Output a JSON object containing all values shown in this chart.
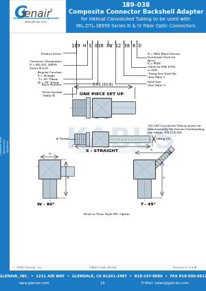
{
  "title_part": "189-038",
  "title_line1": "Composite Connector Backshell Adapter",
  "title_line2": "for Helical Convoluted Tubing to be used with",
  "title_line3": "MIL-DTL-38999 Series III & IV Fiber Optic Connectors",
  "header_bg": "#1a7bc4",
  "header_text_color": "#ffffff",
  "logo_bg": "#ffffff",
  "sidebar_bg": "#1a7bc4",
  "sidebar_text": "Conduit and\nConnector\nSystems",
  "part_number_label": "189 H S 038 XW 12 38 K-D",
  "dim_label": "2.00 (50.8)",
  "one_piece_label": "ONE PIECE SET UP",
  "straight_label": "S - STRAIGHT",
  "w90_label": "W - 90°",
  "t45_label": "T - 45°",
  "a_thread_label": "A Thread",
  "tubing_id_label": "Tubing I.D.",
  "ref_note": "120-100 Convoluted Tubing shown for\nreference only. For Dacron Overbraiding,\nsee Glenair P/N 120-100.",
  "knurl_note": "Knurl or Flute Style Mil. Option",
  "footer_copy": "© 2006 Glenair, Inc.",
  "footer_cage": "CAGE Code 06324",
  "footer_print": "Printed in U.S.A.",
  "footer_address": "GLENAIR, INC.  •  1211 AIR WAY  •  GLENDALE, CA 91201-2497  •  818-247-6000  •  FAX 818-500-9912",
  "footer_web": "www.glenair.com",
  "footer_page": "J-6",
  "footer_email": "E-Mail: sales@glenair.com",
  "footer_bg": "#1a7bc4",
  "watermark_text": "KABUS",
  "watermark_sub": "электронный",
  "watermark_url": ".ru",
  "body_bg": "#ffffff"
}
